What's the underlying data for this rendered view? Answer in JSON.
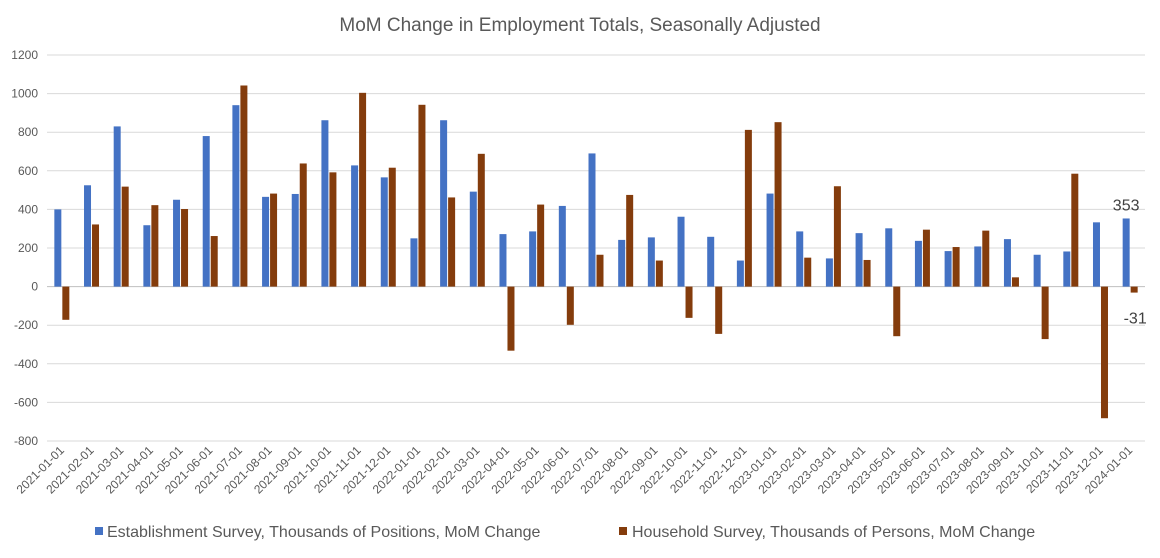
{
  "chart_data": {
    "type": "bar",
    "title": "MoM Change in Employment Totals, Seasonally Adjusted",
    "xlabel": "",
    "ylabel": "",
    "ylim": [
      -800,
      1200
    ],
    "yticks": [
      1200,
      1000,
      800,
      600,
      400,
      200,
      0,
      -200,
      -400,
      -600,
      -800
    ],
    "grid": true,
    "legend_position": "bottom",
    "categories": [
      "2021-01-01",
      "2021-02-01",
      "2021-03-01",
      "2021-04-01",
      "2021-05-01",
      "2021-06-01",
      "2021-07-01",
      "2021-08-01",
      "2021-09-01",
      "2021-10-01",
      "2021-11-01",
      "2021-12-01",
      "2022-01-01",
      "2022-02-01",
      "2022-03-01",
      "2022-04-01",
      "2022-05-01",
      "2022-06-01",
      "2022-07-01",
      "2022-08-01",
      "2022-09-01",
      "2022-10-01",
      "2022-11-01",
      "2022-12-01",
      "2023-01-01",
      "2023-02-01",
      "2023-03-01",
      "2023-04-01",
      "2023-05-01",
      "2023-06-01",
      "2023-07-01",
      "2023-08-01",
      "2023-09-01",
      "2023-10-01",
      "2023-11-01",
      "2023-12-01",
      "2024-01-01"
    ],
    "series": [
      {
        "name": "Establishment Survey, Thousands of Positions, MoM Change",
        "color": "#4472c4",
        "values": [
          400,
          525,
          830,
          318,
          450,
          780,
          940,
          465,
          480,
          862,
          628,
          566,
          250,
          862,
          492,
          272,
          286,
          418,
          690,
          242,
          255,
          362,
          258,
          135,
          482,
          286,
          146,
          277,
          302,
          237,
          184,
          208,
          246,
          165,
          182,
          333,
          353
        ]
      },
      {
        "name": "Household Survey, Thousands of Persons, MoM Change",
        "color": "#843c0c",
        "values": [
          -172,
          322,
          518,
          422,
          402,
          262,
          1042,
          482,
          638,
          592,
          1004,
          616,
          942,
          462,
          688,
          -332,
          425,
          -198,
          165,
          475,
          135,
          -162,
          -245,
          812,
          852,
          150,
          520,
          138,
          -257,
          295,
          205,
          290,
          48,
          -272,
          585,
          -682,
          -31
        ]
      }
    ],
    "data_labels": [
      {
        "series": 0,
        "index": 36,
        "text": "353"
      },
      {
        "series": 1,
        "index": 36,
        "text": "-31"
      }
    ]
  }
}
